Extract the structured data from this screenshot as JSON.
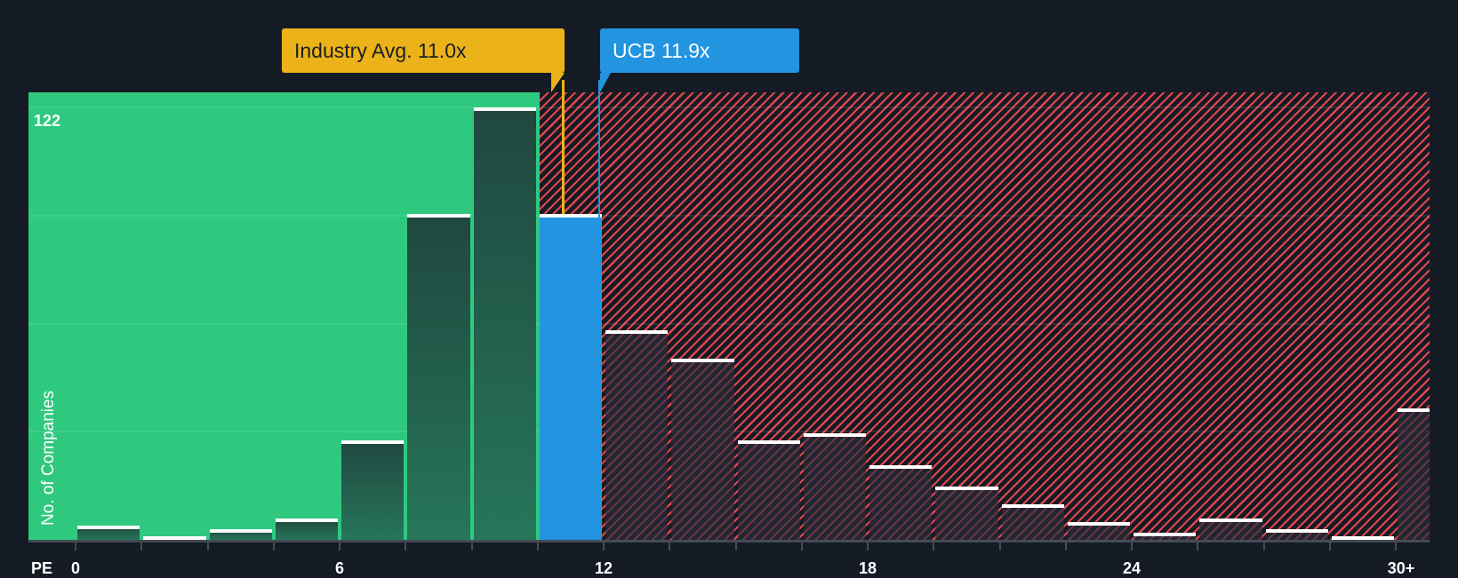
{
  "chart_data": {
    "type": "bar",
    "title": "",
    "xlabel": "PE",
    "ylabel": "No. of Companies",
    "ylim": [
      0,
      122
    ],
    "y_max_label": "122",
    "grid": true,
    "bin_width": 1.5,
    "x_tick_labels": [
      "0",
      "6",
      "12",
      "18",
      "24",
      "30+"
    ],
    "x_tick_values": [
      0,
      6,
      12,
      18,
      24,
      30
    ],
    "categories": [
      "0-1.5",
      "1.5-3",
      "3-4.5",
      "4.5-6",
      "6-7.5",
      "7.5-9",
      "9-10.5",
      "10.5-12",
      "12-13.5",
      "13.5-15",
      "15-16.5",
      "16.5-18",
      "18-19.5",
      "19.5-21",
      "21-22.5",
      "22.5-24",
      "24-25.5",
      "25.5-27",
      "27-28.5",
      "28.5-30",
      "30+"
    ],
    "values": [
      4,
      1,
      3,
      6,
      28,
      92,
      122,
      92,
      59,
      51,
      28,
      30,
      21,
      15,
      10,
      5,
      2,
      6,
      3,
      1,
      37
    ],
    "highlight_bin_index": 7,
    "annotations": [
      {
        "label": "Industry Avg. 11.0x",
        "value": 11.0,
        "color": "#ecb21a",
        "text_color": "#1c1f26"
      },
      {
        "label": "UCB 11.9x",
        "value": 11.9,
        "color": "#2394e0",
        "text_color": "#ffffff"
      }
    ],
    "zones": {
      "below_avg_color": "#2ec97f",
      "above_avg_color": "#e0474c"
    }
  },
  "labels": {
    "industry_callout": "Industry Avg. 11.0x",
    "company_callout": "UCB 11.9x",
    "y_axis": "No. of Companies",
    "x_axis": "PE",
    "y_max": "122"
  }
}
